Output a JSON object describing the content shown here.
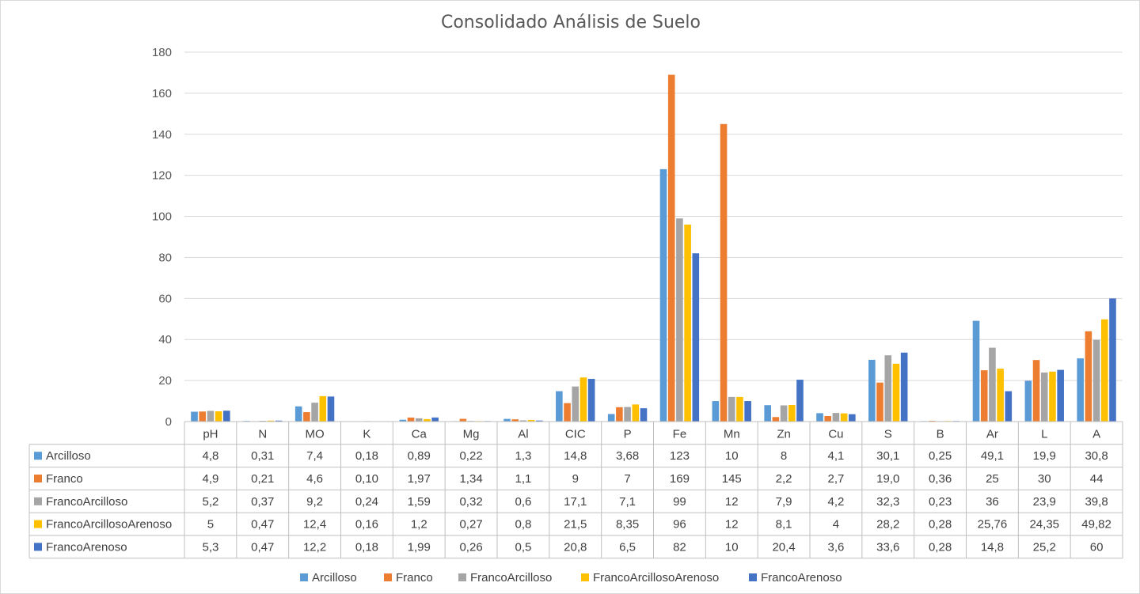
{
  "chart_data": {
    "type": "bar",
    "title": "Consolidado Análisis de Suelo",
    "xlabel": "",
    "ylabel": "",
    "ylim": [
      0,
      180
    ],
    "yticks": [
      0,
      20,
      40,
      60,
      80,
      100,
      120,
      140,
      160,
      180
    ],
    "grid": true,
    "legend_position": "bottom",
    "categories": [
      "pH",
      "N",
      "MO",
      "K",
      "Ca",
      "Mg",
      "Al",
      "CIC",
      "P",
      "Fe",
      "Mn",
      "Zn",
      "Cu",
      "S",
      "B",
      "Ar",
      "L",
      "A"
    ],
    "series": [
      {
        "name": "Arcilloso",
        "color": "#5b9bd5",
        "values": [
          4.8,
          0.31,
          7.4,
          0.18,
          0.89,
          0.22,
          1.3,
          14.8,
          3.68,
          123,
          10,
          8,
          4.1,
          30.1,
          0.25,
          49.1,
          19.9,
          30.8
        ],
        "labels": [
          "4,8",
          "0,31",
          "7,4",
          "0,18",
          "0,89",
          "0,22",
          "1,3",
          "14,8",
          "3,68",
          "123",
          "10",
          "8",
          "4,1",
          "30,1",
          "0,25",
          "49,1",
          "19,9",
          "30,8"
        ]
      },
      {
        "name": "Franco",
        "color": "#ed7d31",
        "values": [
          4.9,
          0.21,
          4.6,
          0.1,
          1.97,
          1.34,
          1.1,
          9,
          7,
          169,
          145,
          2.2,
          2.7,
          19.0,
          0.36,
          25,
          30,
          44
        ],
        "labels": [
          "4,9",
          "0,21",
          "4,6",
          "0,10",
          "1,97",
          "1,34",
          "1,1",
          "9",
          "7",
          "169",
          "145",
          "2,2",
          "2,7",
          "19,0",
          "0,36",
          "25",
          "30",
          "44"
        ]
      },
      {
        "name": "FrancoArcilloso",
        "color": "#a5a5a5",
        "values": [
          5.2,
          0.37,
          9.2,
          0.24,
          1.59,
          0.32,
          0.6,
          17.1,
          7.1,
          99,
          12,
          7.9,
          4.2,
          32.3,
          0.23,
          36,
          23.9,
          39.8
        ],
        "labels": [
          "5,2",
          "0,37",
          "9,2",
          "0,24",
          "1,59",
          "0,32",
          "0,6",
          "17,1",
          "7,1",
          "99",
          "12",
          "7,9",
          "4,2",
          "32,3",
          "0,23",
          "36",
          "23,9",
          "39,8"
        ]
      },
      {
        "name": "FrancoArcillosoArenoso",
        "color": "#ffc000",
        "values": [
          5,
          0.47,
          12.4,
          0.16,
          1.2,
          0.27,
          0.8,
          21.5,
          8.35,
          96,
          12,
          8.1,
          4,
          28.2,
          0.28,
          25.76,
          24.35,
          49.82
        ],
        "labels": [
          "5",
          "0,47",
          "12,4",
          "0,16",
          "1,2",
          "0,27",
          "0,8",
          "21,5",
          "8,35",
          "96",
          "12",
          "8,1",
          "4",
          "28,2",
          "0,28",
          "25,76",
          "24,35",
          "49,82"
        ]
      },
      {
        "name": "FrancoArenoso",
        "color": "#4472c4",
        "values": [
          5.3,
          0.47,
          12.2,
          0.18,
          1.99,
          0.26,
          0.5,
          20.8,
          6.5,
          82,
          10,
          20.4,
          3.6,
          33.6,
          0.28,
          14.8,
          25.2,
          60
        ],
        "labels": [
          "5,3",
          "0,47",
          "12,2",
          "0,18",
          "1,99",
          "0,26",
          "0,5",
          "20,8",
          "6,5",
          "82",
          "10",
          "20,4",
          "3,6",
          "33,6",
          "0,28",
          "14,8",
          "25,2",
          "60"
        ]
      }
    ]
  }
}
